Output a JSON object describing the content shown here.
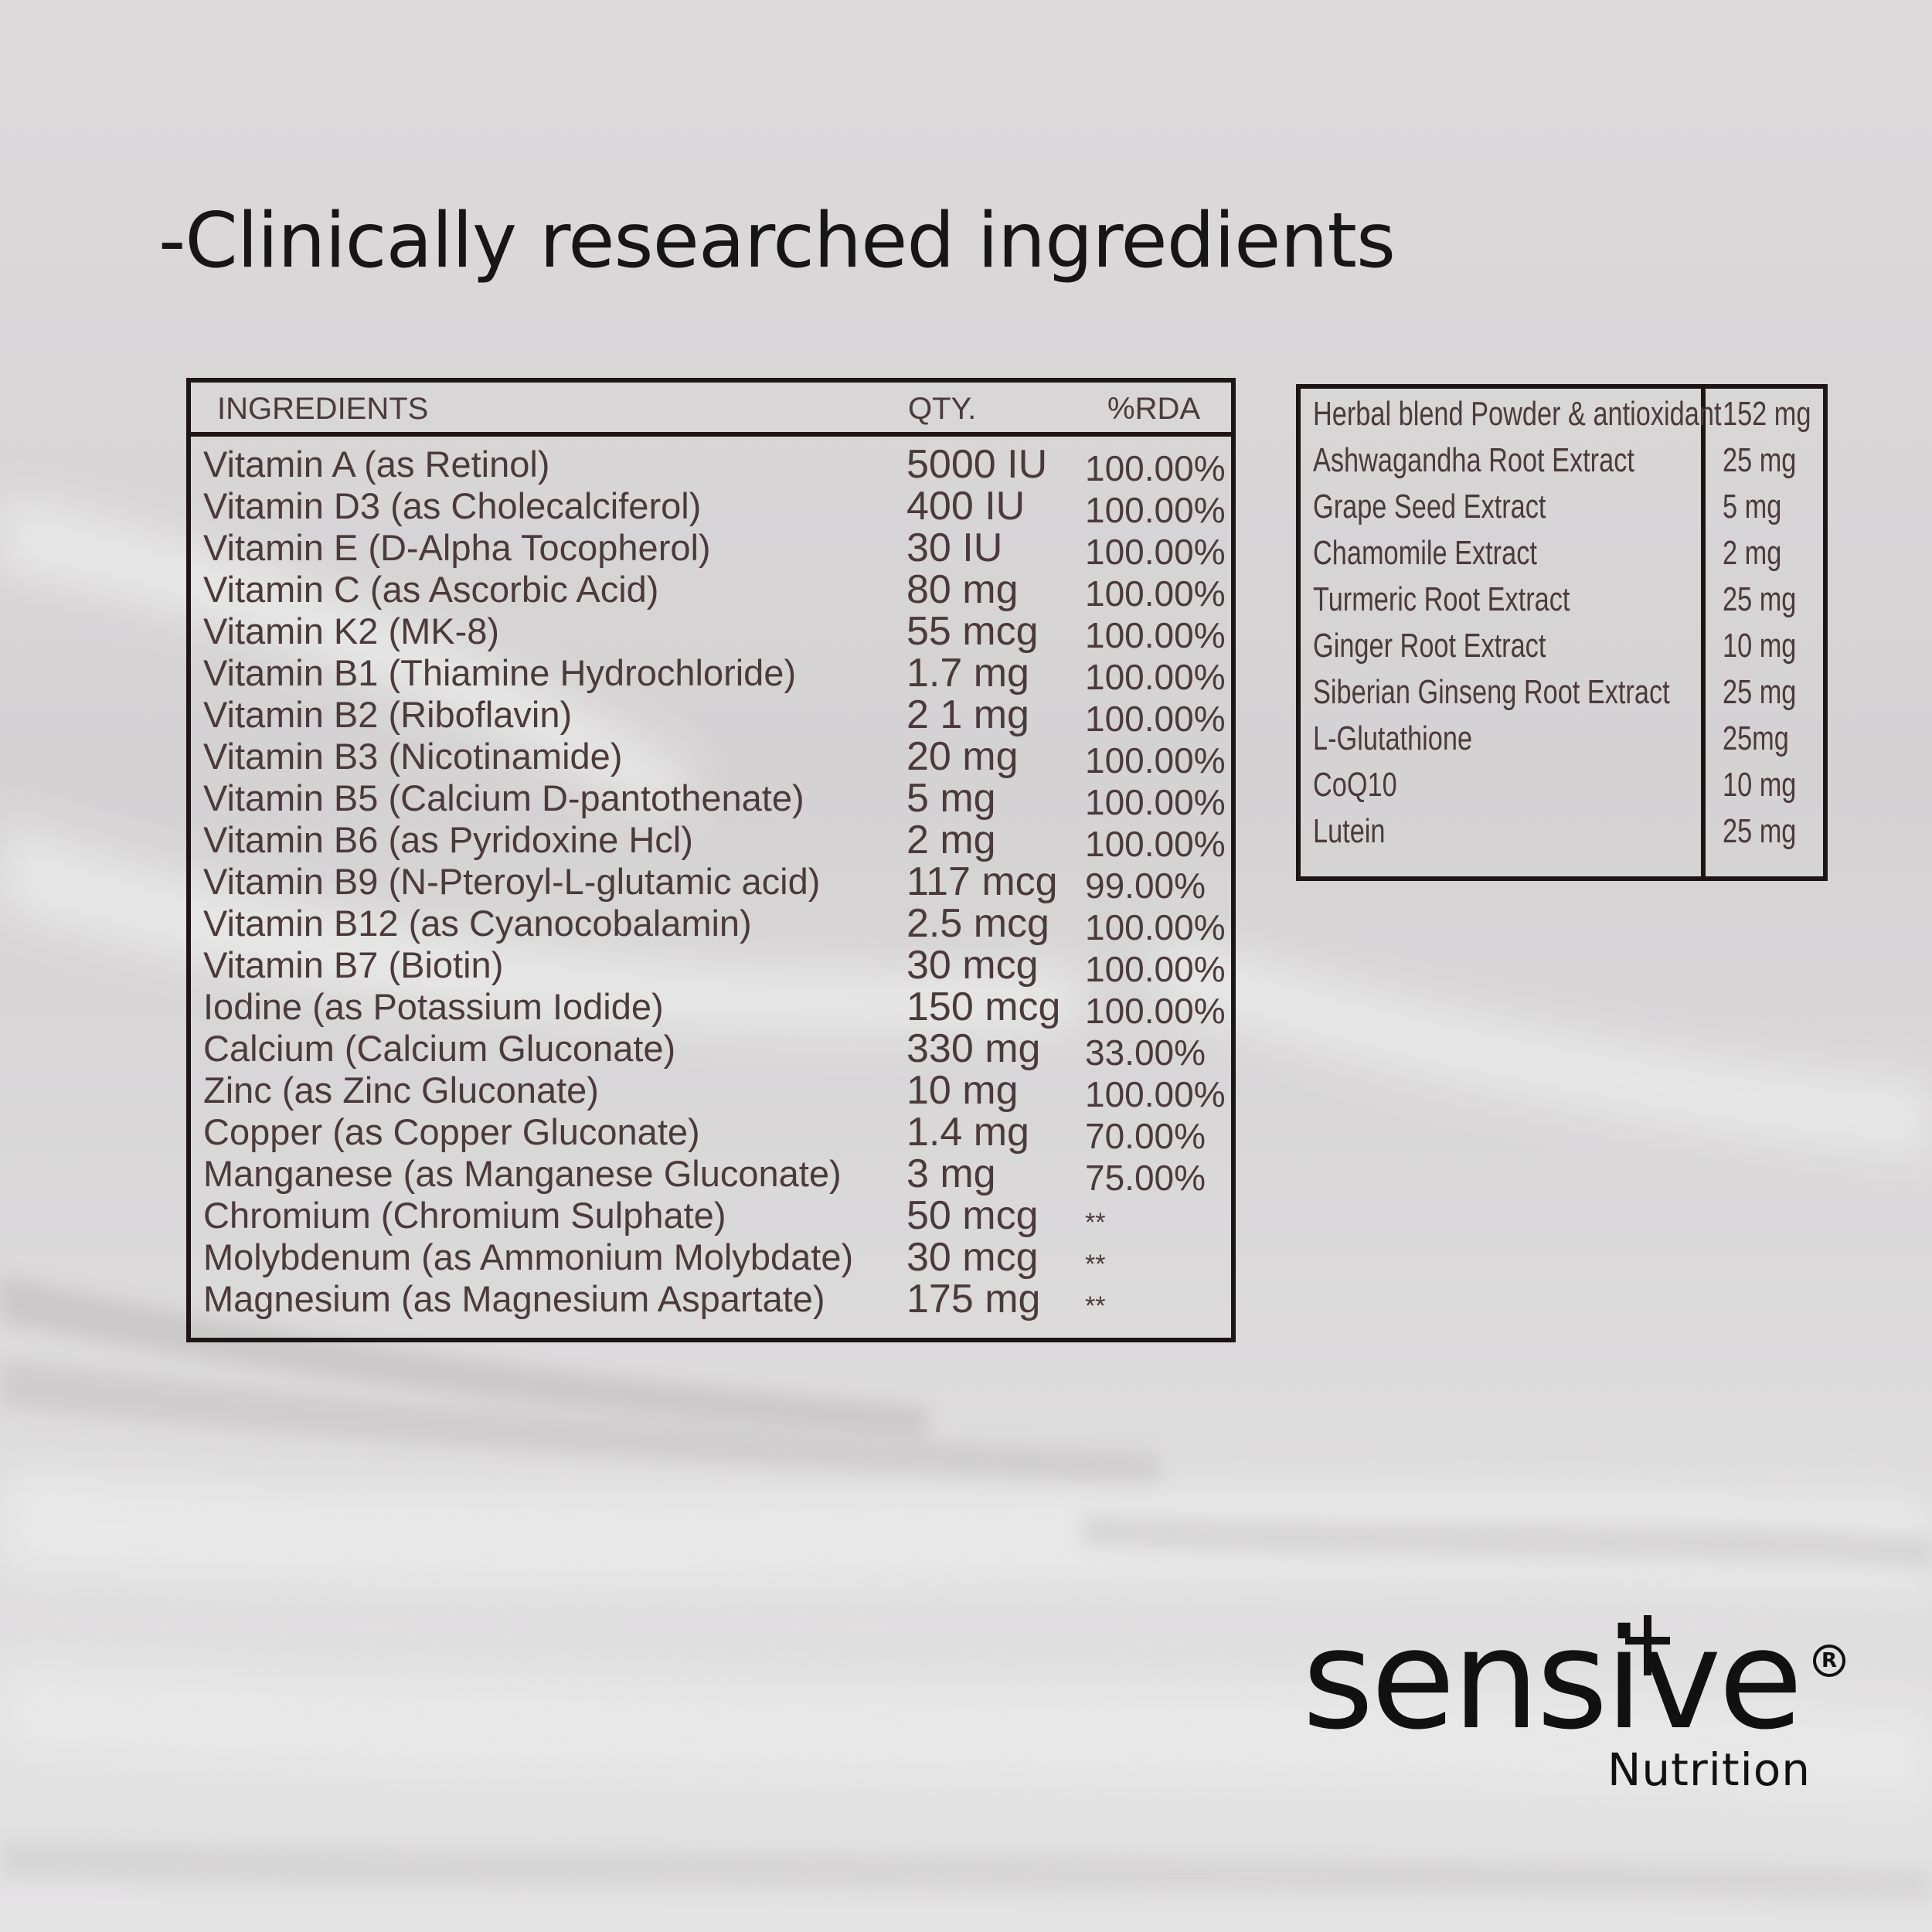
{
  "headline": "-Clinically researched ingredients",
  "main_table": {
    "headers": {
      "ingredient": "INGREDIENTS",
      "qty": "QTY.",
      "rda": "%RDA"
    },
    "rows": [
      {
        "name": "Vitamin A (as Retinol)",
        "qty": "5000 IU",
        "rda": "100.00%"
      },
      {
        "name": "Vitamin D3 (as Cholecalciferol)",
        "qty": "400 IU",
        "rda": "100.00%"
      },
      {
        "name": "Vitamin E (D-Alpha Tocopherol)",
        "qty": "30 IU",
        "rda": "100.00%"
      },
      {
        "name": "Vitamin C (as Ascorbic Acid)",
        "qty": "80 mg",
        "rda": "100.00%"
      },
      {
        "name": "Vitamin K2 (MK-8)",
        "qty": "55 mcg",
        "rda": "100.00%"
      },
      {
        "name": "Vitamin B1 (Thiamine Hydrochloride)",
        "qty": "1.7 mg",
        "rda": "100.00%"
      },
      {
        "name": "Vitamin B2 (Riboflavin)",
        "qty": "2 1 mg",
        "rda": "100.00%"
      },
      {
        "name": "Vitamin B3 (Nicotinamide)",
        "qty": "20 mg",
        "rda": "100.00%"
      },
      {
        "name": "Vitamin B5 (Calcium D-pantothenate)",
        "qty": "5 mg",
        "rda": "100.00%"
      },
      {
        "name": "Vitamin B6 (as Pyridoxine Hcl)",
        "qty": "2 mg",
        "rda": "100.00%"
      },
      {
        "name": "Vitamin B9 (N-Pteroyl-L-glutamic acid)",
        "qty": "117 mcg",
        "rda": "99.00%"
      },
      {
        "name": "Vitamin B12 (as Cyanocobalamin)",
        "qty": "2.5 mcg",
        "rda": "100.00%"
      },
      {
        "name": "Vitamin B7 (Biotin)",
        "qty": "30 mcg",
        "rda": "100.00%"
      },
      {
        "name": "Iodine (as Potassium Iodide)",
        "qty": "150 mcg",
        "rda": "100.00%"
      },
      {
        "name": "Calcium (Calcium Gluconate)",
        "qty": "330 mg",
        "rda": "33.00%"
      },
      {
        "name": "Zinc (as Zinc Gluconate)",
        "qty": "10 mg",
        "rda": "100.00%"
      },
      {
        "name": "Copper (as Copper Gluconate)",
        "qty": "1.4 mg",
        "rda": "70.00%"
      },
      {
        "name": "Manganese (as Manganese Gluconate)",
        "qty": "3 mg",
        "rda": "75.00%"
      },
      {
        "name": "Chromium (Chromium Sulphate)",
        "qty": "50 mcg",
        "rda": "**"
      },
      {
        "name": "Molybdenum (as Ammonium Molybdate)",
        "qty": "30 mcg",
        "rda": "**"
      },
      {
        "name": "Magnesium (as Magnesium Aspartate)",
        "qty": "175 mg",
        "rda": "**"
      }
    ]
  },
  "herbal_table": {
    "rows": [
      {
        "name": "Herbal blend Powder & antioxidant",
        "qty": "152 mg"
      },
      {
        "name": "Ashwagandha Root Extract",
        "qty": "25 mg"
      },
      {
        "name": "Grape Seed Extract",
        "qty": "5 mg"
      },
      {
        "name": "Chamomile Extract",
        "qty": "2 mg"
      },
      {
        "name": "Turmeric Root Extract",
        "qty": "25 mg"
      },
      {
        "name": "Ginger Root Extract",
        "qty": "10 mg"
      },
      {
        "name": "Siberian Ginseng Root Extract",
        "qty": "25 mg"
      },
      {
        "name": "L-Glutathione",
        "qty": "25mg"
      },
      {
        "name": "CoQ10",
        "qty": "10 mg"
      },
      {
        "name": "Lutein",
        "qty": "25 mg"
      }
    ]
  },
  "brand": {
    "name": "sensive",
    "registered": "R",
    "sub": "Nutrition"
  },
  "colors": {
    "table_text": "#4b3a3c",
    "border": "#1e1616",
    "background": "#d8d6d7"
  }
}
